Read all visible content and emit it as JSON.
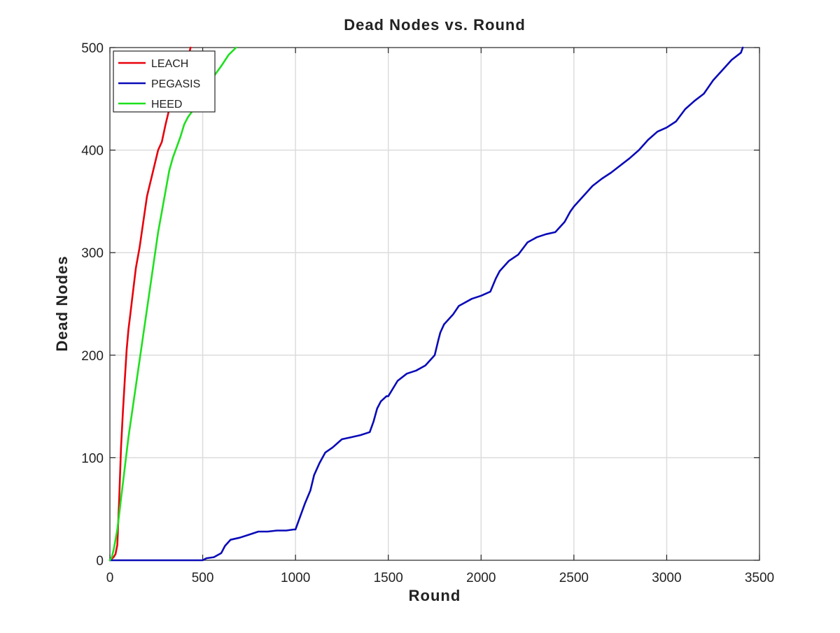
{
  "chart_data": {
    "type": "line",
    "title": "Dead Nodes vs. Round",
    "xlabel": "Round",
    "ylabel": "Dead Nodes",
    "xlim": [
      0,
      3500
    ],
    "ylim": [
      0,
      500
    ],
    "xticks": [
      0,
      500,
      1000,
      1500,
      2000,
      2500,
      3000,
      3500
    ],
    "yticks": [
      0,
      100,
      200,
      300,
      400,
      500
    ],
    "grid": true,
    "legend_position": "top-left",
    "series": [
      {
        "name": "LEACH",
        "color": "#e8000b",
        "x": [
          0,
          20,
          30,
          40,
          50,
          60,
          70,
          80,
          90,
          100,
          110,
          120,
          140,
          160,
          180,
          200,
          220,
          240,
          260,
          280,
          300,
          320,
          340,
          360,
          380,
          400,
          420,
          435
        ],
        "y": [
          0,
          3,
          6,
          15,
          60,
          110,
          145,
          175,
          205,
          225,
          240,
          255,
          285,
          305,
          330,
          355,
          370,
          385,
          400,
          408,
          425,
          440,
          453,
          462,
          470,
          480,
          490,
          500
        ]
      },
      {
        "name": "PEGASIS",
        "color": "#0a0ab8",
        "x": [
          0,
          500,
          520,
          560,
          600,
          620,
          650,
          700,
          750,
          800,
          850,
          900,
          950,
          990,
          1000,
          1020,
          1050,
          1080,
          1100,
          1130,
          1160,
          1200,
          1250,
          1300,
          1350,
          1400,
          1420,
          1440,
          1460,
          1490,
          1500,
          1550,
          1600,
          1650,
          1700,
          1750,
          1770,
          1780,
          1800,
          1850,
          1880,
          1900,
          1950,
          2000,
          2050,
          2080,
          2100,
          2150,
          2200,
          2250,
          2300,
          2350,
          2400,
          2450,
          2480,
          2500,
          2550,
          2600,
          2650,
          2700,
          2750,
          2800,
          2850,
          2900,
          2950,
          3000,
          3050,
          3100,
          3150,
          3200,
          3250,
          3300,
          3350,
          3400,
          3410
        ],
        "y": [
          0,
          0,
          2,
          3,
          7,
          14,
          20,
          22,
          25,
          28,
          28,
          29,
          29,
          30,
          30,
          40,
          55,
          68,
          83,
          95,
          105,
          110,
          118,
          120,
          122,
          125,
          135,
          148,
          155,
          160,
          160,
          175,
          182,
          185,
          190,
          200,
          215,
          222,
          230,
          240,
          248,
          250,
          255,
          258,
          262,
          275,
          282,
          292,
          298,
          310,
          315,
          318,
          320,
          330,
          340,
          345,
          355,
          365,
          372,
          378,
          385,
          392,
          400,
          410,
          418,
          422,
          428,
          440,
          448,
          455,
          468,
          478,
          488,
          495,
          500
        ]
      },
      {
        "name": "HEED",
        "color": "#1ee01e",
        "x": [
          0,
          10,
          20,
          30,
          40,
          50,
          60,
          80,
          100,
          120,
          140,
          160,
          180,
          200,
          220,
          240,
          260,
          280,
          300,
          320,
          340,
          360,
          380,
          400,
          420,
          440,
          460,
          480,
          500,
          530,
          560,
          600,
          640,
          680
        ],
        "y": [
          0,
          3,
          10,
          20,
          30,
          45,
          60,
          90,
          120,
          145,
          170,
          195,
          220,
          245,
          270,
          295,
          320,
          340,
          360,
          380,
          393,
          403,
          413,
          425,
          432,
          437,
          442,
          448,
          455,
          462,
          472,
          482,
          493,
          500
        ]
      }
    ]
  }
}
